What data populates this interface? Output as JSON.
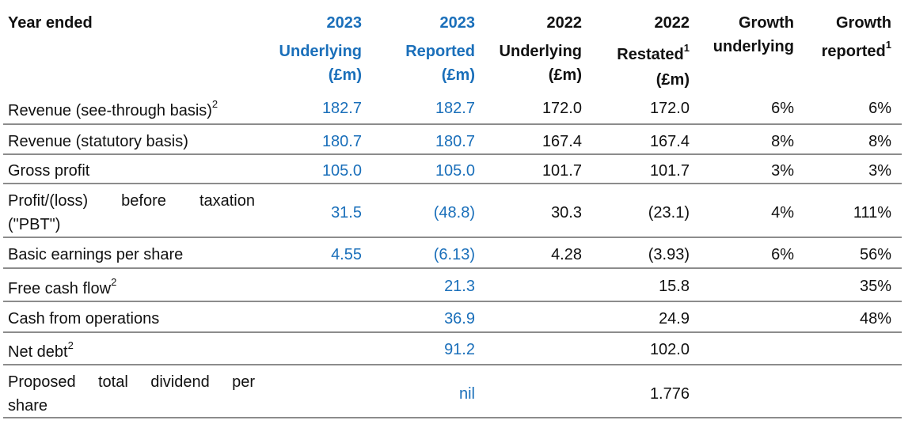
{
  "header": {
    "year_ended": "Year ended",
    "c1": [
      "2023",
      "Underlying",
      "(£m)"
    ],
    "c2": [
      "2023",
      "Reported",
      "(£m)"
    ],
    "c3": [
      "2022",
      "Underlying",
      "(£m)"
    ],
    "c4": [
      "2022",
      "Restated",
      "1",
      "(£m)"
    ],
    "c5": [
      "Growth",
      "underlying"
    ],
    "c6": [
      "Growth",
      "reported",
      "1"
    ]
  },
  "rows": [
    {
      "label": "Revenue (see-through basis)",
      "sup": "2",
      "c1": "182.7",
      "c2": "182.7",
      "c3": "172.0",
      "c4": "172.0",
      "c5": "6%",
      "c6": "6%"
    },
    {
      "label": "Revenue (statutory basis)",
      "sup": "",
      "c1": "180.7",
      "c2": "180.7",
      "c3": "167.4",
      "c4": "167.4",
      "c5": "8%",
      "c6": "8%"
    },
    {
      "label": "Gross profit",
      "sup": "",
      "c1": "105.0",
      "c2": "105.0",
      "c3": "101.7",
      "c4": "101.7",
      "c5": "3%",
      "c6": "3%"
    },
    {
      "label_l1": "Profit/(loss) before taxation",
      "label_l2": "(\"PBT\")",
      "c1": "31.5",
      "c2": "(48.8)",
      "c3": "30.3",
      "c4": "(23.1)",
      "c5": "4%",
      "c6": "111%"
    },
    {
      "label": "Basic earnings per share",
      "sup": "",
      "c1": "4.55",
      "c2": "(6.13)",
      "c3": "4.28",
      "c4": "(3.93)",
      "c5": "6%",
      "c6": "56%"
    },
    {
      "label": "Free cash flow",
      "sup": "2",
      "c1": "",
      "c2": "21.3",
      "c3": "",
      "c4": "15.8",
      "c5": "",
      "c6": "35%"
    },
    {
      "label": "Cash from operations",
      "sup": "",
      "c1": "",
      "c2": "36.9",
      "c3": "",
      "c4": "24.9",
      "c5": "",
      "c6": "48%"
    },
    {
      "label": "Net debt",
      "sup": "2",
      "c1": "",
      "c2": "91.2",
      "c3": "",
      "c4": "102.0",
      "c5": "",
      "c6": ""
    },
    {
      "label_l1": "Proposed total dividend per",
      "label_l2": "share",
      "c1": "",
      "c2": "nil",
      "c3": "",
      "c4": "1.776",
      "c5": "",
      "c6": ""
    }
  ]
}
